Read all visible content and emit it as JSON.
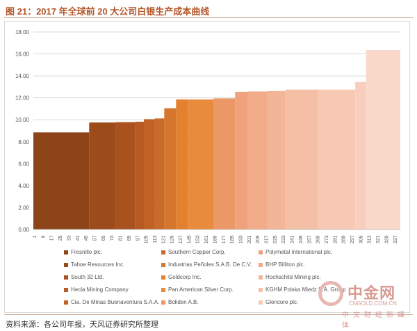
{
  "header": {
    "title": "图 21：2017 年全球前 20 大公司白银生产成本曲线"
  },
  "chart_data": {
    "type": "bar",
    "subtype": "cost-curve",
    "y_ticks": [
      "0.00",
      "2.00",
      "4.00",
      "6.00",
      "8.00",
      "10.00",
      "12.00",
      "14.00",
      "16.00",
      "18.00"
    ],
    "ylim": [
      0,
      18
    ],
    "x_ticks": [
      "1",
      "9",
      "17",
      "25",
      "33",
      "41",
      "49",
      "57",
      "65",
      "73",
      "81",
      "89",
      "97",
      "105",
      "113",
      "121",
      "129",
      "137",
      "145",
      "153",
      "161",
      "169",
      "177",
      "185",
      "193",
      "201",
      "209",
      "217",
      "225",
      "233",
      "241",
      "249",
      "257",
      "265",
      "273",
      "281",
      "289",
      "297",
      "305",
      "313",
      "321",
      "329",
      "337"
    ],
    "xlim": [
      0,
      342
    ],
    "grid": true,
    "legend_position": "bottom",
    "series": [
      {
        "name": "Fresnillo plc.",
        "start": 0,
        "end": 52,
        "value": 8.85,
        "color": "#8c4418"
      },
      {
        "name": "Tahoe Resources Inc.",
        "start": 52,
        "end": 77,
        "value": 9.75,
        "color": "#9c4b1b"
      },
      {
        "name": "South 32 Ltd.",
        "start": 77,
        "end": 95,
        "value": 9.78,
        "color": "#a9521e"
      },
      {
        "name": "Hecla Mining Company",
        "start": 95,
        "end": 103,
        "value": 9.82,
        "color": "#b65a22"
      },
      {
        "name": "Cia. De Minas Buenaventura S.A.A.",
        "start": 103,
        "end": 113,
        "value": 10.05,
        "color": "#c06224"
      },
      {
        "name": "Southern Copper Corp.",
        "start": 113,
        "end": 122,
        "value": 10.12,
        "color": "#c86a28"
      },
      {
        "name": "Industrias Peñoles S.A.B. De C.V.",
        "start": 122,
        "end": 133,
        "value": 11.05,
        "color": "#d6752c"
      },
      {
        "name": "Goldcorp Inc.",
        "start": 133,
        "end": 144,
        "value": 11.85,
        "color": "#e4812f"
      },
      {
        "name": "Pan American Silver Corp.",
        "start": 144,
        "end": 168,
        "value": 11.85,
        "color": "#e98b3c"
      },
      {
        "name": "Boliden A.B.",
        "start": 168,
        "end": 188,
        "value": 11.95,
        "color": "#ec9766"
      },
      {
        "name": "Polymetal International plc.",
        "start": 188,
        "end": 200,
        "value": 12.55,
        "color": "#efa27b"
      },
      {
        "name": "BHP Billiton plc.",
        "start": 200,
        "end": 218,
        "value": 12.58,
        "color": "#f1ab88"
      },
      {
        "name": "Hochschild Mining plc.",
        "start": 218,
        "end": 235,
        "value": 12.62,
        "color": "#f3b598"
      },
      {
        "name": "KGHM Polska Miedz S.A. Group",
        "start": 235,
        "end": 265,
        "value": 12.75,
        "color": "#f5bfa6"
      },
      {
        "name": "Glencore plc.",
        "start": 265,
        "end": 300,
        "value": 12.75,
        "color": "#f7c9b4"
      },
      {
        "name": "",
        "start": 300,
        "end": 310,
        "value": 13.45,
        "color": "#f8cfbe"
      },
      {
        "name": "",
        "start": 310,
        "end": 342,
        "value": 16.35,
        "color": "#fad8ca"
      }
    ]
  },
  "source": "资料来源：各公司年报，天风证券研究所整理",
  "watermark": {
    "name": "中金网",
    "domain": "CNGOLD.COM.CN",
    "sub": "中文财经新媒体"
  }
}
